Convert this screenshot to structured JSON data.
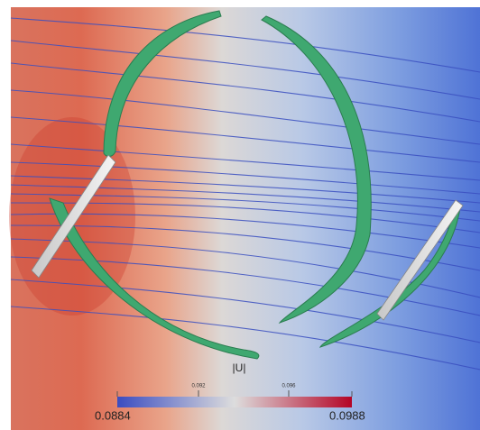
{
  "colorbar": {
    "title": "|U|",
    "range": [
      0.0884,
      0.0988
    ],
    "ticks": [
      0.092,
      0.096
    ]
  }
}
